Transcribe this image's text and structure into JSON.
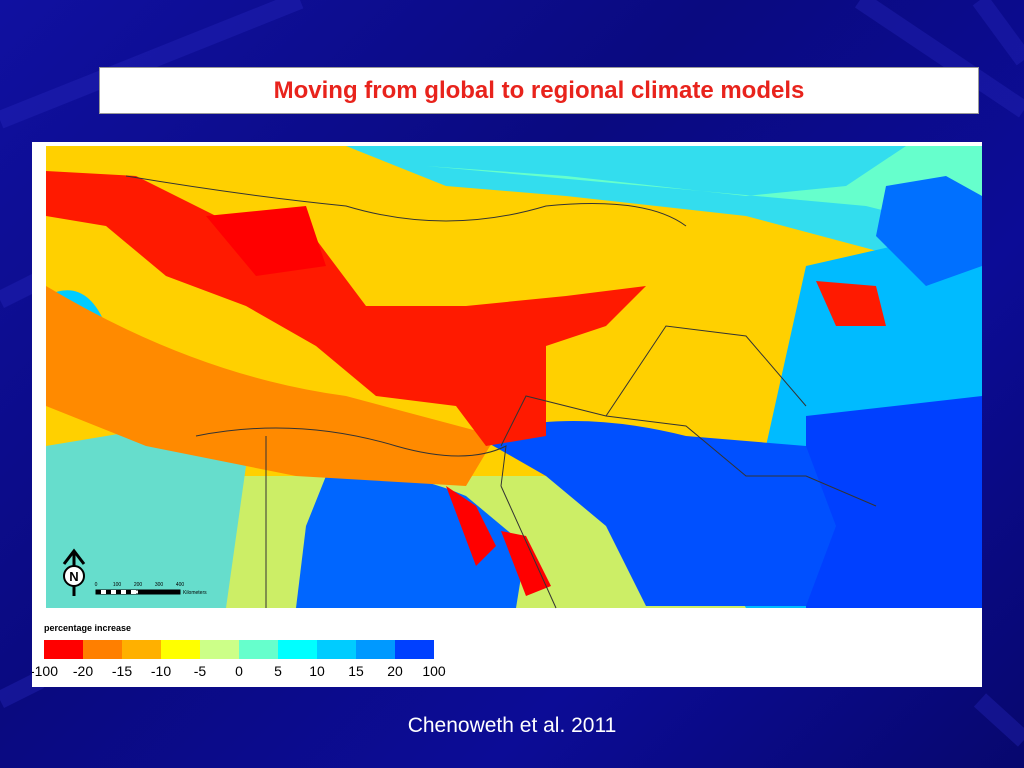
{
  "header": {
    "title": "Moving from global to regional climate models"
  },
  "map": {
    "north_label": "N",
    "scale_bar": {
      "labels": [
        "0",
        "100",
        "200",
        "300",
        "400"
      ],
      "unit": "Kilometers"
    },
    "legend": {
      "title": "percentage increase",
      "colors": [
        "#ff0000",
        "#ff7f00",
        "#ffb000",
        "#ffff00",
        "#ccff88",
        "#66ffcc",
        "#00ffff",
        "#00ccff",
        "#0099ff",
        "#0040ff"
      ],
      "labels": [
        "-100",
        "-20",
        "-15",
        "-10",
        "-5",
        "0",
        "5",
        "10",
        "15",
        "20",
        "100"
      ]
    }
  },
  "footer": {
    "citation": "Chenoweth et al. 2011"
  }
}
